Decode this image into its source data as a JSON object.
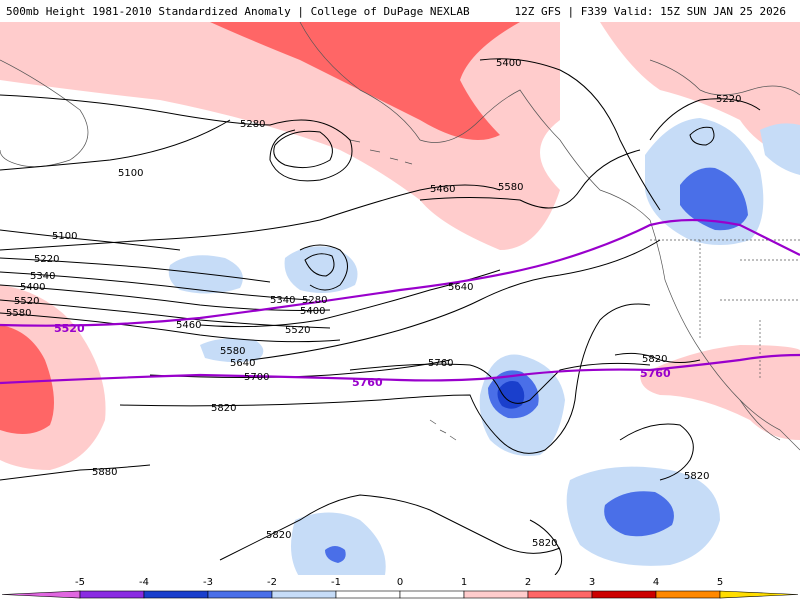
{
  "header": {
    "left_text": "500mb Height 1981-2010 Standardized Anomaly | College of DuPage NEXLAB",
    "right_text": "12Z GFS | F339 Valid: 15Z SUN JAN 25 2026"
  },
  "colors": {
    "anom_neg5": "#e066e0",
    "anom_neg4": "#8a2be2",
    "anom_neg3": "#1a3fcc",
    "anom_neg2": "#4a6fe8",
    "anom_neg1": "#c6dcf7",
    "anom_0": "#ffffff",
    "anom_pos1": "#ffcccc",
    "anom_pos2": "#ff6666",
    "anom_pos3": "#cc0000",
    "anom_pos4": "#ff8800",
    "anom_pos5": "#ffdd00",
    "highlight_contour": "#9900cc",
    "coastline": "#555555"
  },
  "contour_labels": [
    {
      "id": "5400-ne",
      "text": "5400"
    },
    {
      "id": "5220-ne",
      "text": "5220"
    },
    {
      "id": "5280-n",
      "text": "5280"
    },
    {
      "id": "5100-nw",
      "text": "5100"
    },
    {
      "id": "5460-c",
      "text": "5460"
    },
    {
      "id": "5580-c",
      "text": "5580"
    },
    {
      "id": "5100-w",
      "text": "5100"
    },
    {
      "id": "5220-w",
      "text": "5220"
    },
    {
      "id": "5340-w",
      "text": "5340"
    },
    {
      "id": "5400-w",
      "text": "5400"
    },
    {
      "id": "5520-w",
      "text": "5520"
    },
    {
      "id": "5580-w",
      "text": "5580"
    },
    {
      "id": "5340-c",
      "text": "5340"
    },
    {
      "id": "5280-c",
      "text": "5280"
    },
    {
      "id": "5400-c",
      "text": "5400"
    },
    {
      "id": "5460-c2",
      "text": "5460"
    },
    {
      "id": "5520-c",
      "text": "5520"
    },
    {
      "id": "5640-c",
      "text": "5640"
    },
    {
      "id": "5580-c2",
      "text": "5580"
    },
    {
      "id": "5640-c2",
      "text": "5640"
    },
    {
      "id": "5700-c",
      "text": "5700"
    },
    {
      "id": "5760-c",
      "text": "5760"
    },
    {
      "id": "5820-c",
      "text": "5820"
    },
    {
      "id": "5820-e",
      "text": "5820"
    },
    {
      "id": "5880-sw",
      "text": "5880"
    },
    {
      "id": "5820-se",
      "text": "5820"
    },
    {
      "id": "5820-s",
      "text": "5820"
    },
    {
      "id": "5820-s2",
      "text": "5820"
    }
  ],
  "highlight_labels": {
    "c5520": "5520",
    "c5760_mid": "5760",
    "c5760_east": "5760"
  },
  "colorbar": {
    "ticks": [
      "-5",
      "-4",
      "-3",
      "-2",
      "-1",
      "0",
      "1",
      "2",
      "3",
      "4",
      "5"
    ]
  }
}
